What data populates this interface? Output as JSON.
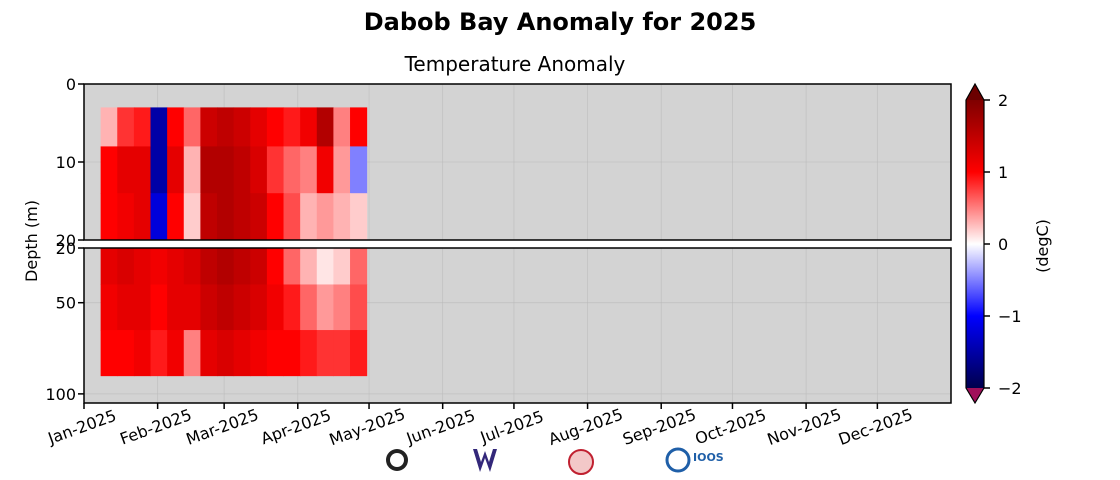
{
  "chart_data": {
    "type": "heatmap",
    "title": "Dabob Bay Anomaly for 2025",
    "subtitle": "Temperature Anomaly",
    "y_label": "Depth (m)",
    "colorbar_label": "(degC)",
    "xlim": [
      0,
      365
    ],
    "xticks": [
      {
        "value": 0,
        "label": "Jan-2025"
      },
      {
        "value": 31,
        "label": "Feb-2025"
      },
      {
        "value": 59,
        "label": "Mar-2025"
      },
      {
        "value": 90,
        "label": "Apr-2025"
      },
      {
        "value": 120,
        "label": "May-2025"
      },
      {
        "value": 151,
        "label": "Jun-2025"
      },
      {
        "value": 181,
        "label": "Jul-2025"
      },
      {
        "value": 212,
        "label": "Aug-2025"
      },
      {
        "value": 243,
        "label": "Sep-2025"
      },
      {
        "value": 273,
        "label": "Oct-2025"
      },
      {
        "value": 304,
        "label": "Nov-2025"
      },
      {
        "value": 334,
        "label": "Dec-2025"
      }
    ],
    "panels": [
      {
        "ylim": [
          0,
          20
        ],
        "yticks": [
          0,
          10,
          20
        ]
      },
      {
        "ylim": [
          20,
          105
        ],
        "yticks": [
          20,
          50,
          100
        ]
      }
    ],
    "x_bins": [
      7,
      14,
      21,
      28,
      35,
      42,
      49,
      56,
      63,
      70,
      77,
      84,
      91,
      98,
      105,
      112,
      119
    ],
    "depth_bins": [
      3,
      8,
      14,
      20,
      40,
      65,
      90
    ],
    "values": [
      [
        0.3,
        0.8,
        0.9,
        -1.5,
        1.0,
        0.6,
        1.4,
        1.5,
        1.4,
        1.2,
        1.0,
        0.9,
        1.1,
        1.6,
        0.5,
        1.0
      ],
      [
        1.0,
        1.2,
        1.2,
        -1.5,
        1.2,
        0.3,
        1.6,
        1.6,
        1.5,
        1.3,
        0.8,
        0.6,
        0.5,
        1.1,
        0.4,
        -0.5
      ],
      [
        1.0,
        1.1,
        1.2,
        -1.2,
        1.0,
        0.2,
        1.5,
        1.6,
        1.5,
        1.4,
        1.0,
        0.7,
        0.3,
        0.4,
        0.3,
        0.2
      ],
      [
        1.2,
        1.3,
        1.2,
        1.1,
        1.2,
        1.3,
        1.5,
        1.6,
        1.5,
        1.4,
        1.0,
        0.6,
        0.3,
        0.1,
        0.2,
        0.6
      ],
      [
        1.1,
        1.2,
        1.2,
        1.0,
        1.2,
        1.2,
        1.4,
        1.5,
        1.4,
        1.3,
        1.1,
        0.9,
        0.6,
        0.4,
        0.5,
        0.7
      ],
      [
        1.0,
        1.0,
        1.1,
        0.9,
        1.1,
        0.5,
        1.2,
        1.3,
        1.2,
        1.1,
        1.0,
        1.0,
        0.9,
        0.8,
        0.8,
        0.9
      ]
    ],
    "clim": [
      -2,
      2
    ],
    "cticks": [
      {
        "value": -2,
        "label": "−2"
      },
      {
        "value": -1,
        "label": "−1"
      },
      0,
      1,
      2
    ],
    "colormap": [
      "#00004c",
      "#0000ff",
      "#ffffff",
      "#ff0000",
      "#7f0000"
    ],
    "under_color": "#a0105a",
    "over_color": "#6b0000",
    "background": "#d3d3d3",
    "grid": true,
    "logo_text": "IOOS"
  }
}
